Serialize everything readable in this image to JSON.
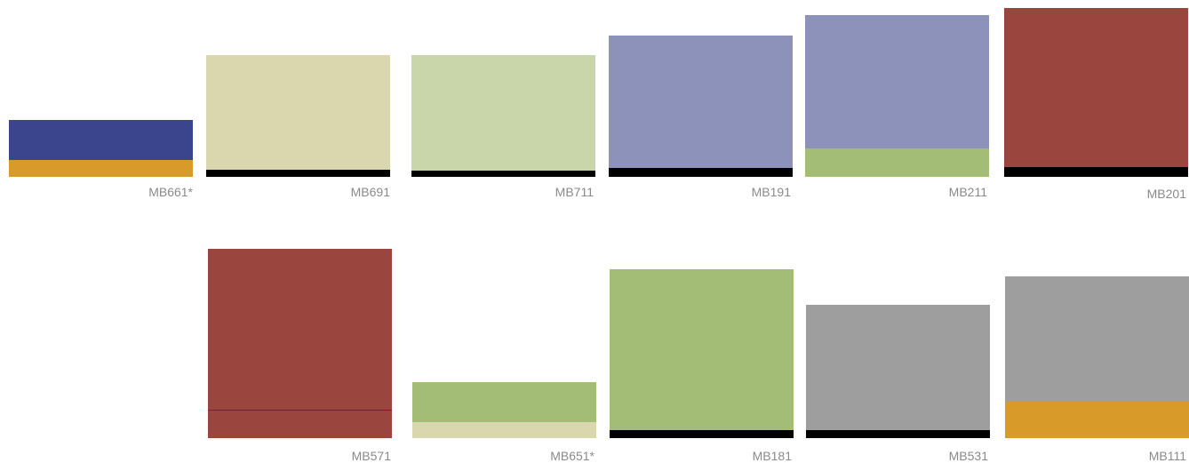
{
  "swatches": [
    {
      "code": "MB661*",
      "bands": [
        {
          "color": "#3a458d",
          "label": "navy"
        },
        {
          "color": "#d89b29",
          "label": "amber"
        }
      ]
    },
    {
      "code": "MB691",
      "bands": [
        {
          "color": "#dad6ae",
          "label": "cream"
        },
        {
          "color": "#000000",
          "label": "black"
        }
      ]
    },
    {
      "code": "MB711",
      "bands": [
        {
          "color": "#c8d6aa",
          "label": "light-green"
        },
        {
          "color": "#000000",
          "label": "black"
        }
      ]
    },
    {
      "code": "MB191",
      "bands": [
        {
          "color": "#8c92ba",
          "label": "lavender"
        },
        {
          "color": "#000000",
          "label": "black"
        }
      ]
    },
    {
      "code": "MB211",
      "bands": [
        {
          "color": "#8c92ba",
          "label": "lavender"
        },
        {
          "color": "#a3bd77",
          "label": "green"
        }
      ]
    },
    {
      "code": "MB201",
      "bands": [
        {
          "color": "#9a453e",
          "label": "brick-red"
        },
        {
          "color": "#000000",
          "label": "black"
        }
      ]
    },
    {
      "code": "MB571",
      "bands": [
        {
          "color": "#9a453e",
          "label": "brick-red"
        },
        {
          "color": "#3b3b3b",
          "label": "dark-gray"
        },
        {
          "color": "#9a453e",
          "label": "brick-red"
        }
      ]
    },
    {
      "code": "MB651*",
      "bands": [
        {
          "color": "#a3bd77",
          "label": "green"
        },
        {
          "color": "#dad6ae",
          "label": "cream"
        }
      ]
    },
    {
      "code": "MB181",
      "bands": [
        {
          "color": "#a3bd77",
          "label": "green"
        },
        {
          "color": "#000000",
          "label": "black"
        }
      ]
    },
    {
      "code": "MB531",
      "bands": [
        {
          "color": "#9e9e9e",
          "label": "gray"
        },
        {
          "color": "#000000",
          "label": "black"
        }
      ]
    },
    {
      "code": "MB111",
      "bands": [
        {
          "color": "#9e9e9e",
          "label": "gray"
        },
        {
          "color": "#d89b29",
          "label": "amber"
        }
      ]
    }
  ]
}
